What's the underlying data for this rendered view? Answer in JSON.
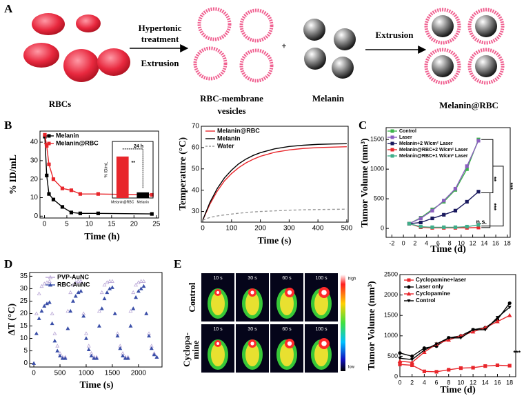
{
  "panel_labels": [
    "A",
    "B",
    "C",
    "D",
    "E"
  ],
  "diagram": {
    "rbcs": "RBCs",
    "step1": [
      "Hypertonic",
      "treatment",
      "Extrusion"
    ],
    "vesicles": [
      "RBC-membrane",
      "vesicles"
    ],
    "plus": "+",
    "melanin": "Melanin",
    "step2": "Extrusion",
    "product": "Melanin@RBC"
  },
  "thermal": {
    "row_labels": [
      [
        "Control"
      ],
      [
        "Cyclopa-",
        "mine"
      ]
    ],
    "times": [
      "10 s",
      "30 s",
      "60 s",
      "100 s"
    ],
    "colorbar": [
      "high",
      "low"
    ]
  },
  "chart_data": [
    {
      "type": "line",
      "xlabel": "Time (h)",
      "ylabel": "% ID/mL",
      "x": [
        0.08,
        0.5,
        1,
        2,
        4,
        6,
        8,
        12,
        24
      ],
      "xlim": [
        -1,
        25.5
      ],
      "xticks": [
        0,
        5,
        10,
        15,
        20,
        25
      ],
      "ylim": [
        -1,
        46
      ],
      "yticks": [
        0,
        10,
        20,
        30,
        40
      ],
      "series": [
        {
          "name": "Melanin",
          "color": "#000000",
          "marker": "square",
          "values": [
            43,
            22,
            12,
            9,
            5,
            2,
            1.5,
            1.5,
            1.2
          ]
        },
        {
          "name": "Melanin@RBC",
          "color": "#e8262b",
          "marker": "square",
          "values": [
            44,
            38,
            28,
            20,
            15,
            14,
            12,
            12,
            11.5
          ]
        }
      ]
    },
    {
      "type": "bar",
      "ylabel": "% ID/mL",
      "categories": [
        "Melanin@RBC",
        "Melanin"
      ],
      "values": [
        11,
        1.5
      ],
      "colors": [
        "#e8262b",
        "#000000"
      ],
      "ylim": [
        0,
        15
      ],
      "annotations": [
        "24 h",
        "**"
      ]
    },
    {
      "type": "line",
      "xlabel": "Time (s)",
      "ylabel": "Temperature (°C)",
      "x": [
        0,
        25,
        50,
        75,
        100,
        125,
        150,
        175,
        200,
        250,
        300,
        350,
        400,
        450,
        500
      ],
      "xlim": [
        -5,
        505
      ],
      "xticks": [
        0,
        100,
        200,
        300,
        400,
        500
      ],
      "ylim": [
        25,
        70
      ],
      "yticks": [
        30,
        40,
        50,
        60,
        70
      ],
      "series": [
        {
          "name": "Melanin@RBC",
          "color": "#e8262b",
          "values": [
            26,
            33.5,
            39.5,
            44.3,
            47.8,
            50.6,
            52.8,
            54.5,
            55.9,
            57.8,
            58.9,
            59.6,
            60.0,
            60.2,
            60.4
          ]
        },
        {
          "name": "Melanin",
          "color": "#000000",
          "values": [
            26,
            34.3,
            40.7,
            45.7,
            49.4,
            52.4,
            54.6,
            56.3,
            57.6,
            59.4,
            60.5,
            61.1,
            61.5,
            61.7,
            61.8
          ]
        },
        {
          "name": "Water",
          "color": "#999999",
          "dash": true,
          "values": [
            26,
            27.2,
            27.9,
            28.4,
            28.8,
            29.2,
            29.5,
            29.8,
            30.0,
            30.3,
            30.6,
            30.8,
            30.9,
            31.0,
            31.1
          ]
        }
      ]
    },
    {
      "type": "line",
      "xlabel": "Time (d)",
      "ylabel": "Tumor Volume (mm³)",
      "x": [
        1,
        3,
        5,
        7,
        9,
        11,
        13
      ],
      "xlim": [
        -3,
        18.5
      ],
      "xticks": [
        -2,
        0,
        2,
        4,
        6,
        8,
        10,
        12,
        14,
        16,
        18
      ],
      "ylim": [
        -150,
        1700
      ],
      "yticks": [
        0,
        500,
        1000,
        1500
      ],
      "annotations": [
        "**",
        "***",
        "***",
        "n.s."
      ],
      "series": [
        {
          "name": "Control",
          "color": "#3cb44b",
          "marker": "square",
          "values": [
            80,
            180,
            320,
            450,
            650,
            1000,
            1500
          ]
        },
        {
          "name": "Laser",
          "color": "#8b5fbf",
          "marker": "square",
          "values": [
            80,
            170,
            300,
            470,
            670,
            1050,
            1480
          ]
        },
        {
          "name": "Melanin+2 W/cm² Laser",
          "color": "#1a1a5e",
          "marker": "square",
          "values": [
            80,
            100,
            170,
            230,
            300,
            450,
            620
          ]
        },
        {
          "name": "Melanin@RBC+2 W/cm² Laser",
          "color": "#e8262b",
          "marker": "square",
          "values": [
            80,
            20,
            10,
            10,
            10,
            10,
            15
          ]
        },
        {
          "name": "Melanin@RBC+1 W/cm² Laser",
          "color": "#3fae8a",
          "marker": "square",
          "values": [
            80,
            30,
            20,
            20,
            20,
            30,
            60
          ]
        }
      ]
    },
    {
      "type": "scatter",
      "xlabel": "Time (s)",
      "ylabel": "ΔT (°C)",
      "x": [
        0,
        50,
        100,
        150,
        200,
        250,
        300,
        350,
        400,
        450,
        500,
        550,
        600,
        650,
        700,
        750,
        800,
        850,
        900,
        950,
        1000,
        1050,
        1100,
        1150,
        1200,
        1250,
        1300,
        1350,
        1400,
        1450,
        1500,
        1550,
        1600,
        1650,
        1700,
        1750,
        1800,
        1850,
        1900,
        1950,
        2000,
        2050,
        2100,
        2150,
        2200,
        2250,
        2300,
        2350
      ],
      "xlim": [
        -80,
        2450
      ],
      "xticks": [
        0,
        500,
        1000,
        1500,
        2000
      ],
      "ylim": [
        -1.5,
        36.5
      ],
      "yticks": [
        0,
        5,
        10,
        15,
        20,
        25,
        30,
        35
      ],
      "series": [
        {
          "name": "PVP-AuNC",
          "color": "#b9a6d6",
          "marker": "triangle-open",
          "values": [
            0,
            20,
            28,
            31,
            32,
            32.5,
            33,
            20,
            12,
            7,
            4,
            2.5,
            2.5,
            21,
            28.5,
            31.5,
            32.5,
            33,
            33,
            20,
            12,
            7,
            4,
            2.5,
            2.5,
            21,
            28.5,
            31.5,
            32.5,
            33,
            33,
            20,
            12,
            7,
            4,
            2.5,
            2.5,
            21,
            28.5,
            31.5,
            32.5,
            33,
            33,
            20,
            12,
            7,
            4,
            2.5
          ]
        },
        {
          "name": "RBC-AuNC",
          "color": "#3a4fa8",
          "marker": "triangle",
          "values": [
            0,
            12,
            18,
            21,
            23,
            24,
            24.5,
            16,
            9,
            5,
            3,
            2,
            2,
            14,
            21,
            25,
            27,
            28.5,
            29,
            19,
            10,
            5.5,
            3,
            2,
            2,
            15,
            22,
            26,
            28.5,
            30,
            30.5,
            20,
            11,
            6,
            3,
            2,
            2,
            15,
            22,
            26.5,
            29,
            30,
            31,
            20,
            11,
            6,
            3.5,
            2.5
          ]
        }
      ]
    },
    {
      "type": "line",
      "xlabel": "Time (d)",
      "ylabel": "Tumor Volume (mm³)",
      "x": [
        0,
        2,
        4,
        6,
        8,
        10,
        12,
        14,
        16,
        18
      ],
      "xlim": [
        0,
        19
      ],
      "xticks": [
        0,
        2,
        4,
        6,
        8,
        10,
        12,
        14,
        16,
        18
      ],
      "ylim": [
        0,
        2500
      ],
      "yticks": [
        0,
        500,
        1000,
        1500,
        2000,
        2500
      ],
      "annotations": [
        "***"
      ],
      "series": [
        {
          "name": "Cyclopamine+laser",
          "color": "#e8262b",
          "marker": "square",
          "values": [
            300,
            280,
            130,
            120,
            170,
            210,
            220,
            260,
            280,
            270
          ]
        },
        {
          "name": "Laser only",
          "color": "#000000",
          "marker": "circle",
          "values": [
            580,
            500,
            700,
            750,
            950,
            1000,
            1150,
            1200,
            1400,
            1800
          ]
        },
        {
          "name": "Cyclopamine",
          "color": "#e8262b",
          "marker": "triangle",
          "values": [
            380,
            350,
            600,
            800,
            900,
            1000,
            1100,
            1200,
            1350,
            1500
          ]
        },
        {
          "name": "Control",
          "color": "#000000",
          "marker": "triangle-down",
          "values": [
            450,
            420,
            650,
            800,
            950,
            950,
            1150,
            1150,
            1450,
            1700
          ]
        }
      ]
    }
  ]
}
